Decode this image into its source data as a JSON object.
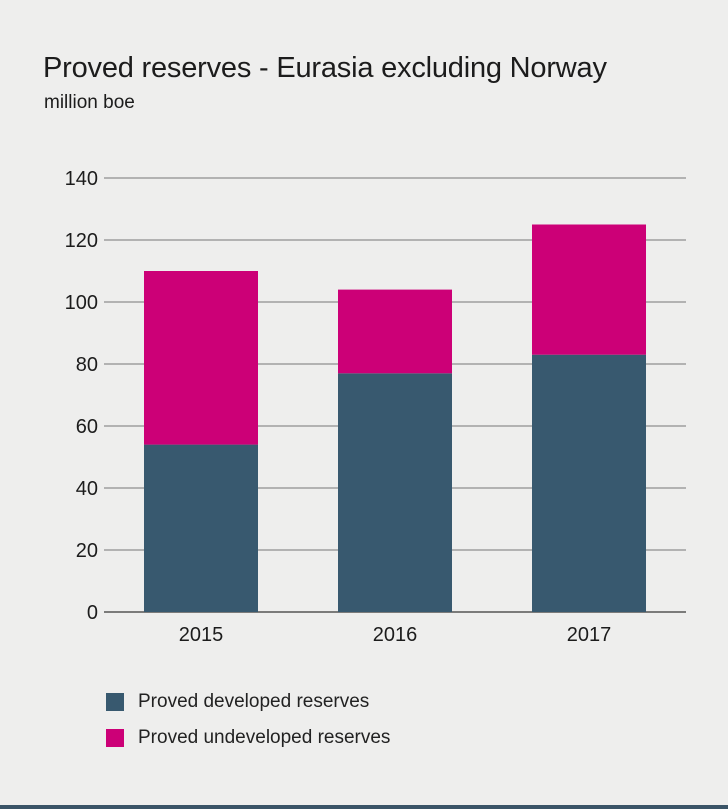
{
  "chart_data": {
    "type": "bar",
    "stacked": true,
    "title": "Proved reserves - Eurasia excluding Norway",
    "subtitle": "million boe",
    "categories": [
      "2015",
      "2016",
      "2017"
    ],
    "series": [
      {
        "name": "Proved developed reserves",
        "values": [
          54,
          77,
          83
        ],
        "color": "#38596f"
      },
      {
        "name": "Proved undeveloped reserves",
        "values": [
          56,
          27,
          42
        ],
        "color": "#cc0077"
      }
    ],
    "ylim": [
      0,
      140
    ],
    "yticks": [
      0,
      20,
      40,
      60,
      80,
      100,
      120,
      140
    ],
    "grid": true,
    "legend_position": "bottom-left"
  }
}
